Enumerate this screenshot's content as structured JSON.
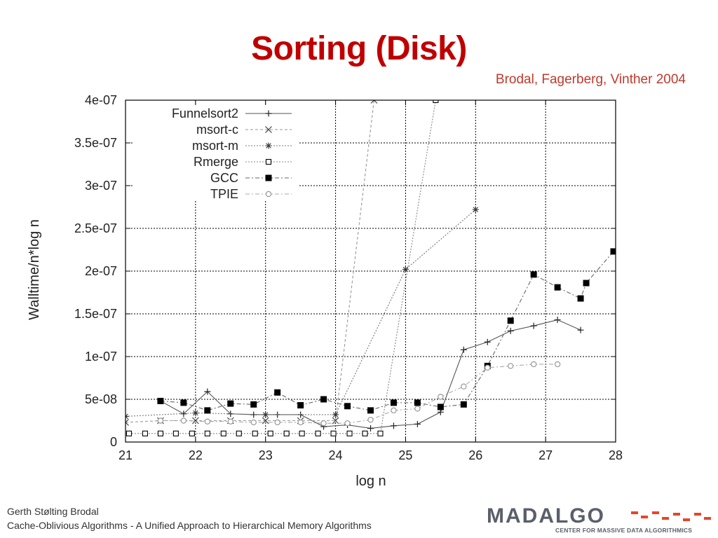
{
  "slide": {
    "title": "Sorting (Disk)",
    "citation": "Brodal, Fagerberg, Vinther 2004",
    "footer_author": "Gerth Stølting Brodal",
    "footer_course": "Cache-Oblivious Algorithms - A Unified Approach to Hierarchical Memory Algorithms",
    "logo_text": "MADALGO",
    "logo_tagline": "CENTER FOR MASSIVE DATA ALGORITHMICS",
    "title_color": "#c00000",
    "citation_color": "#c0392b",
    "logo_accent_color": "#e8452a",
    "logo_text_color": "#5a5f6a"
  },
  "chart_data": {
    "type": "line",
    "title": "",
    "xlabel": "log n",
    "ylabel": "Walltime/n*log n",
    "xlim": [
      21,
      28
    ],
    "ylim": [
      0,
      4e-07
    ],
    "x_ticks": [
      21,
      22,
      23,
      24,
      25,
      26,
      27,
      28
    ],
    "x_tick_labels": [
      "21",
      "22",
      "23",
      "24",
      "25",
      "26",
      "27",
      "28"
    ],
    "y_ticks": [
      0,
      5e-08,
      1e-07,
      1.5e-07,
      2e-07,
      2.5e-07,
      3e-07,
      3.5e-07,
      4e-07
    ],
    "y_tick_labels": [
      "0",
      "5e-08",
      "1e-07",
      "1.5e-07",
      "2e-07",
      "2.5e-07",
      "3e-07",
      "3.5e-07",
      "4e-07"
    ],
    "grid": true,
    "legend_position": "top-left",
    "series": [
      {
        "name": "Funnelsort2",
        "marker": "plus",
        "dash": "solid",
        "color": "#555555",
        "x": [
          21.5,
          21.83,
          22.17,
          22.5,
          22.83,
          23.17,
          23.5,
          23.83,
          24.17,
          24.5,
          24.83,
          25.17,
          25.5,
          25.83,
          26.17,
          26.5,
          26.83,
          27.17,
          27.5
        ],
        "y": [
          4.8e-08,
          3.3e-08,
          5.9e-08,
          3.3e-08,
          3.2e-08,
          3.2e-08,
          3.2e-08,
          1.8e-08,
          2e-08,
          1.6e-08,
          1.9e-08,
          2.1e-08,
          3.5e-08,
          1.08e-07,
          1.17e-07,
          1.3e-07,
          1.36e-07,
          1.43e-07,
          1.31e-07
        ]
      },
      {
        "name": "msort-c",
        "marker": "cross",
        "dash": "dashed",
        "color": "#999999",
        "x": [
          21,
          21.5,
          22,
          22.5,
          23,
          23.5,
          24,
          24.55
        ],
        "y": [
          2.3e-08,
          2.5e-08,
          2.5e-08,
          2.5e-08,
          2.5e-08,
          2.5e-08,
          2.5e-08,
          4e-07
        ]
      },
      {
        "name": "msort-m",
        "marker": "star",
        "dash": "dotted",
        "color": "#777777",
        "x": [
          21,
          22,
          23,
          24,
          25,
          26
        ],
        "y": [
          3e-08,
          3.4e-08,
          3.2e-08,
          3.2e-08,
          2.02e-07,
          2.72e-07
        ]
      },
      {
        "name": "Rmerge",
        "marker": "open-square",
        "dash": "dotted",
        "color": "#888888",
        "x": [
          21.05,
          21.28,
          21.5,
          21.72,
          21.95,
          22.17,
          22.4,
          22.62,
          22.85,
          23.07,
          23.3,
          23.52,
          23.75,
          23.97,
          24.2,
          24.42,
          24.64,
          25.43
        ],
        "y": [
          1e-08,
          1e-08,
          1e-08,
          1e-08,
          1e-08,
          1e-08,
          1e-08,
          1e-08,
          1e-08,
          1e-08,
          1e-08,
          1e-08,
          1e-08,
          1e-08,
          1e-08,
          1e-08,
          1e-08,
          4e-07
        ]
      },
      {
        "name": "GCC",
        "marker": "filled-square",
        "dash": "dashdot",
        "color": "#666666",
        "x": [
          21.5,
          21.83,
          22.17,
          22.5,
          22.83,
          23.17,
          23.5,
          23.83,
          24.17,
          24.5,
          24.83,
          25.17,
          25.5,
          25.83,
          26.17,
          26.5,
          26.83,
          27.17,
          27.5,
          27.58,
          27.97
        ],
        "y": [
          4.8e-08,
          4.6e-08,
          3.7e-08,
          4.5e-08,
          4.4e-08,
          5.8e-08,
          4.3e-08,
          5e-08,
          4.2e-08,
          3.7e-08,
          4.6e-08,
          4.6e-08,
          4.1e-08,
          4.4e-08,
          8.9e-08,
          1.42e-07,
          1.96e-07,
          1.81e-07,
          1.68e-07,
          1.86e-07,
          2.23e-07
        ]
      },
      {
        "name": "TPIE",
        "marker": "open-circle",
        "dash": "dashdot",
        "color": "#aaaaaa",
        "x": [
          21.5,
          21.83,
          22.17,
          22.5,
          22.83,
          23.17,
          23.5,
          23.83,
          24.17,
          24.5,
          24.83,
          25.17,
          25.5,
          25.83,
          26.17,
          26.5,
          26.83,
          27.17
        ],
        "y": [
          2.5e-08,
          2.5e-08,
          2.4e-08,
          2.4e-08,
          2.3e-08,
          2.3e-08,
          2.3e-08,
          2.2e-08,
          2.2e-08,
          2.6e-08,
          3.7e-08,
          3.9e-08,
          5.3e-08,
          6.5e-08,
          8.7e-08,
          8.9e-08,
          9.1e-08,
          9.1e-08
        ]
      }
    ]
  }
}
